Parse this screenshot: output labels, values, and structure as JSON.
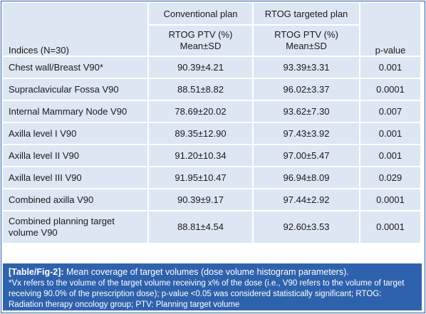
{
  "table": {
    "header": {
      "indices": "Indices (N=30)",
      "conventional": "Conventional plan",
      "rtog_targeted": "RTOG targeted plan",
      "sub_line1": "RTOG PTV (%)",
      "sub_line2": "Mean±SD",
      "p_value": "p-value"
    },
    "rows": [
      {
        "index": "Chest wall/Breast V90*",
        "conventional": "90.39±4.21",
        "rtog": "93.39±3.31",
        "p": "0.001"
      },
      {
        "index": "Supraclavicular Fossa V90",
        "conventional": "88.51±8.82",
        "rtog": "96.02±3.37",
        "p": "0.0001"
      },
      {
        "index": "Internal Mammary Node V90",
        "conventional": "78.69±20.02",
        "rtog": "93.62±7.30",
        "p": "0.007"
      },
      {
        "index": "Axilla level I V90",
        "conventional": "89.35±12.90",
        "rtog": "97.43±3.92",
        "p": "0.001"
      },
      {
        "index": "Axilla level II V90",
        "conventional": "91.20±10.34",
        "rtog": "97.00±5.47",
        "p": "0.001"
      },
      {
        "index": "Axilla level III V90",
        "conventional": "91.95±10.47",
        "rtog": "96.94±8.09",
        "p": "0.029"
      },
      {
        "index": "Combined axilla V90",
        "conventional": "90.39±9.17",
        "rtog": "97.44±2.92",
        "p": "0.0001"
      },
      {
        "index_line1": "Combined planning target",
        "index_line2": "volume V90",
        "conventional": "88.81±4.54",
        "rtog": "92.60±3.53",
        "p": "0.0001"
      }
    ]
  },
  "caption": {
    "tag": "[Table/Fig-2]:",
    "title": " Mean coverage of target volumes (dose volume histogram parameters).",
    "note": "*Vx refers to the volume of the target volume receiving x% of the dose (i.e., V90 refers to the volume of target receiving 90.0% of the prescription dose); p-value <0.05 was considered statistically significant; RTOG: Radiation therapy oncology group; PTV: Planning target volume"
  },
  "colors": {
    "cell_bg": "#dde6f3",
    "header_text": "#2f6ab5",
    "caption_bg": "#2f62ad",
    "border": "#2a5aa3"
  }
}
